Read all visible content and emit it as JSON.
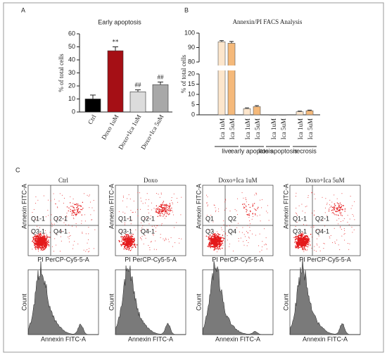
{
  "chart_data": [
    {
      "type": "bar",
      "panel": "A",
      "title": "Early apoptosis",
      "ylabel": "% of total cells",
      "categories": [
        "Ctrl",
        "Doxo 1uM",
        "Doxo+Ica 1uM",
        "Doxo+Ica 5uM"
      ],
      "values": [
        10,
        47,
        15.5,
        21
      ],
      "errors": [
        3,
        3,
        1.5,
        2
      ],
      "colors": [
        "#000000",
        "#a50f15",
        "#dcdcdc",
        "#a8a8a8"
      ],
      "annotations": [
        "",
        "**",
        "##",
        "##"
      ],
      "ylim": [
        0,
        60
      ],
      "yticks": [
        0,
        10,
        20,
        30,
        40,
        50,
        60
      ]
    },
    {
      "type": "grouped_bar",
      "panel": "B",
      "title": "Annexin/PI FACS Analysis",
      "ylabel": "% of total cells",
      "groups": [
        "live",
        "early apoptosis",
        "late apoptosis",
        "necrosis"
      ],
      "series": [
        {
          "name": "Ica 1uM",
          "color": "#fde6cc",
          "values": [
            94,
            3,
            0,
            1.5
          ],
          "errors": [
            0.8,
            0.4,
            0,
            0.3
          ]
        },
        {
          "name": "Ica 5uM",
          "color": "#f5b97a",
          "values": [
            93,
            4,
            0,
            2
          ],
          "errors": [
            1.2,
            0.5,
            0,
            0.3
          ]
        }
      ],
      "ylim": [
        0,
        100
      ],
      "ybreak": [
        20,
        80
      ],
      "yticks": [
        0,
        5,
        10,
        15,
        20,
        80,
        90,
        100
      ]
    }
  ],
  "flow_cytometry": {
    "panel": "C",
    "samples": [
      {
        "name": "Ctrl",
        "quadrants": [
          "Q1-1",
          "Q2-1",
          "Q3-1",
          "Q4-1"
        ]
      },
      {
        "name": "Doxo",
        "quadrants": [
          "Q1-1",
          "Q2-1",
          "Q3-1",
          "Q4-1"
        ]
      },
      {
        "name": "Doxo+Ica 1uM",
        "quadrants": [
          "Q1",
          "Q2",
          "Q3",
          "Q4"
        ]
      },
      {
        "name": "Doxo+Ica 5uM",
        "quadrants": [
          "Q1-1",
          "Q2-1",
          "Q3-1",
          "Q4-1"
        ]
      }
    ],
    "scatter_xlabel": "PI PerCP-Cy5-5-A",
    "scatter_ylabel": "Annexin FITC-A",
    "hist_xlabel": "Annexin FITC-A",
    "hist_ylabel": "Count"
  }
}
